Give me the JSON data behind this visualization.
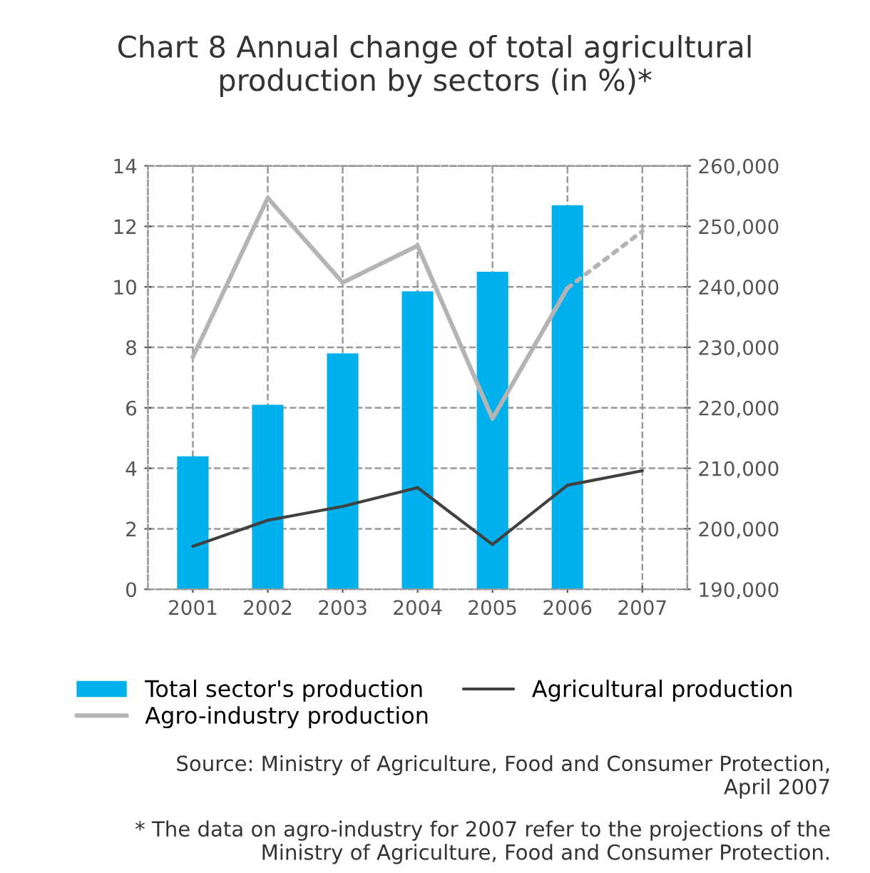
{
  "chart_data": {
    "type": "bar",
    "title": "Chart 8 Annual change of total agricultural\nproduction by sectors (in %)*",
    "categories": [
      "2001",
      "2002",
      "2003",
      "2004",
      "2005",
      "2006",
      "2007"
    ],
    "series": [
      {
        "name": "Total sector's production",
        "color": "#00b0ec",
        "values": [
          4.4,
          6.1,
          7.8,
          9.85,
          10.5,
          12.7,
          null
        ]
      },
      {
        "name": "Agro-industry production",
        "type": "line",
        "axis": "y2",
        "color": "#b4b4b4",
        "line_style": "solid",
        "values": [
          228400,
          254700,
          240700,
          246800,
          218200,
          239800,
          null
        ]
      },
      {
        "type": "line",
        "axis": "y2",
        "color": "#b4b4b4",
        "line_style": "dotted",
        "values": [
          null,
          null,
          null,
          null,
          null,
          239800,
          249200
        ]
      },
      {
        "name": "Agricultural production",
        "type": "line",
        "axis": "y2",
        "color": "#404040",
        "line_style": "solid",
        "values": [
          197100,
          201400,
          203700,
          206800,
          197400,
          207200,
          209600
        ]
      }
    ],
    "ylim": [
      0,
      14
    ],
    "yticks": [
      0,
      2,
      4,
      6,
      8,
      10,
      12,
      14
    ],
    "y2lim": [
      190000,
      260000
    ],
    "y2ticks": [
      {
        "value": 190000,
        "label": "190,000"
      },
      {
        "value": 200000,
        "label": "200,000"
      },
      {
        "value": 210000,
        "label": "210,000"
      },
      {
        "value": 220000,
        "label": "220,000"
      },
      {
        "value": 230000,
        "label": "230,000"
      },
      {
        "value": 240000,
        "label": "240,000"
      },
      {
        "value": 250000,
        "label": "250,000"
      },
      {
        "value": 260000,
        "label": "260,000"
      }
    ],
    "grid": true,
    "legend": "bottom",
    "marker": "none",
    "annotations": [
      "Source: Ministry of Agriculture, Food and Consumer Protection,\nApril 2007",
      "* The data on agro-industry for 2007 refer to the projections of the\nMinistry of Agriculture, Food and Consumer Protection."
    ]
  }
}
